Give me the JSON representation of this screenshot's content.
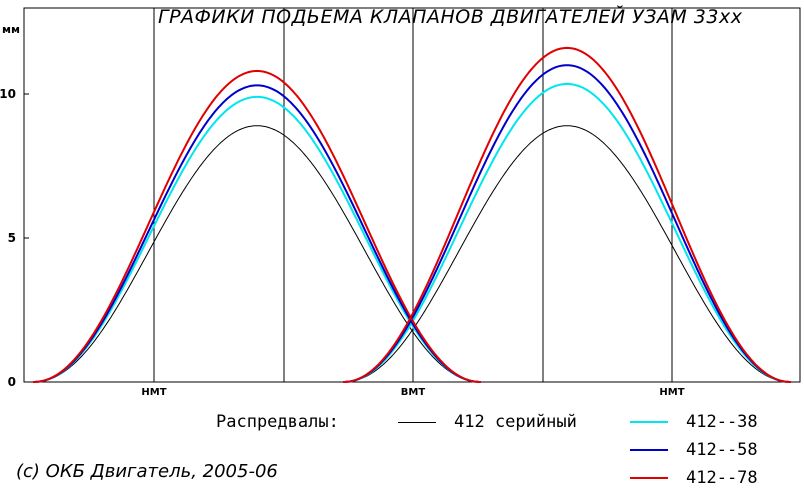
{
  "chart_data": {
    "type": "line",
    "title": "ГРАФИКИ ПОДЬЕМА КЛАПАНОВ ДВИГАТЕЛЕЙ УЗАМ 33хх",
    "ylabel": "мм",
    "ylim": [
      0,
      12
    ],
    "yticks": [
      0,
      5,
      10
    ],
    "x_markers": [
      "НМТ",
      "ВМТ",
      "НМТ"
    ],
    "grid": "vertical",
    "legend_title": "Распредвалы:",
    "legend_position": "bottom",
    "series": [
      {
        "name": "412 серийный",
        "color": "#000000",
        "width": 1,
        "intake_peak": 8.9,
        "exhaust_peak": 8.9,
        "intake_center": 257,
        "exhaust_center": 567
      },
      {
        "name": "412--38",
        "color": "#00e5ee",
        "width": 2,
        "intake_peak": 9.9,
        "exhaust_peak": 10.35,
        "intake_center": 257,
        "exhaust_center": 567
      },
      {
        "name": "412--58",
        "color": "#0000cc",
        "width": 2,
        "intake_peak": 10.3,
        "exhaust_peak": 11.0,
        "intake_center": 257,
        "exhaust_center": 567
      },
      {
        "name": "412--78",
        "color": "#e00000",
        "width": 2,
        "intake_peak": 10.8,
        "exhaust_peak": 11.6,
        "intake_center": 257,
        "exhaust_center": 567
      }
    ]
  },
  "credit": "(c) ОКБ Двигатель, 2005-06"
}
